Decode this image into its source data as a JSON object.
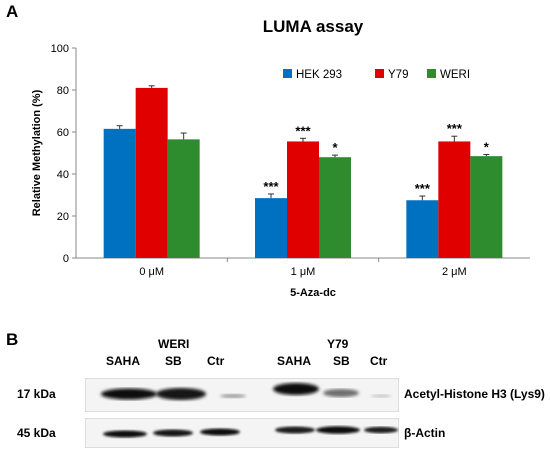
{
  "panels": {
    "a_letter": "A",
    "b_letter": "B"
  },
  "chart_data": {
    "type": "bar",
    "title": "LUMA assay",
    "xlabel": "5-Aza-dc",
    "ylabel": "Relative Methylation (%)",
    "ylim": [
      0,
      100
    ],
    "yticks": [
      0,
      20,
      40,
      60,
      80,
      100
    ],
    "categories": [
      "0 μM",
      "1 μM",
      "2 μM"
    ],
    "legend_position": "top-right",
    "grid": false,
    "series": [
      {
        "name": "HEK 293",
        "color": "#0070c0",
        "values": [
          61.5,
          28.5,
          27.5
        ],
        "errors": [
          1.5,
          2.0,
          2.0
        ],
        "annotations": [
          "",
          "***",
          "***"
        ]
      },
      {
        "name": "Y79",
        "color": "#e00000",
        "values": [
          81.0,
          55.5,
          55.5
        ],
        "errors": [
          1.0,
          1.5,
          2.5
        ],
        "annotations": [
          "",
          "***",
          "***"
        ]
      },
      {
        "name": "WERI",
        "color": "#2e8b2e",
        "values": [
          56.5,
          48.0,
          48.5
        ],
        "errors": [
          3.0,
          1.0,
          0.8
        ],
        "annotations": [
          "",
          "*",
          "*"
        ]
      }
    ]
  },
  "blot": {
    "groups": [
      {
        "name": "WERI",
        "lanes": [
          "SAHA",
          "SB",
          "Ctr"
        ]
      },
      {
        "name": "Y79",
        "lanes": [
          "SAHA",
          "SB",
          "Ctr"
        ]
      }
    ],
    "rows": [
      {
        "size": "17 kDa",
        "protein": "Acetyl-Histone H3 (Lys9)"
      },
      {
        "size": "45 kDa",
        "protein": "β-Actin"
      }
    ]
  }
}
